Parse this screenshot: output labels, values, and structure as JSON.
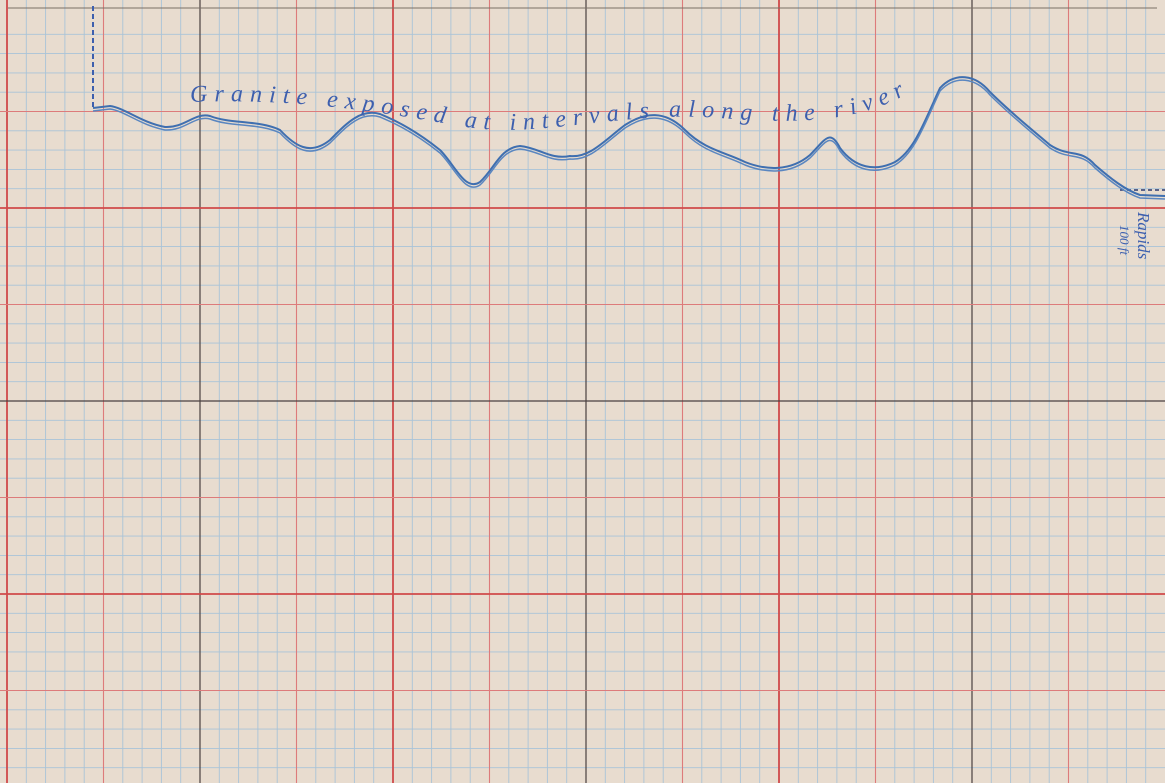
{
  "annotation": {
    "text": "Granite exposed at intervals along the river"
  },
  "end_label": {
    "text": "Rapids",
    "note": "100 ft"
  }
}
